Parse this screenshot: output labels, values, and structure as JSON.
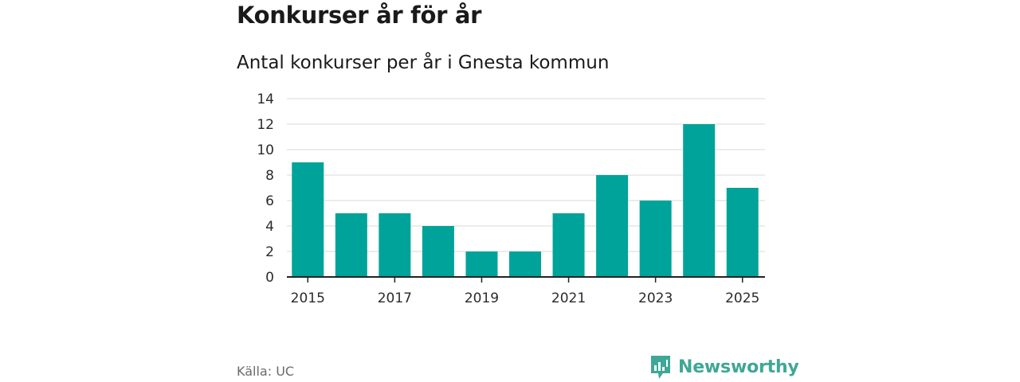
{
  "header": {
    "title": "Konkurser år för år",
    "subtitle": "Antal konkurser per år i Gnesta kommun"
  },
  "footer": {
    "source": "Källa: UC",
    "brand": "Newsworthy",
    "brand_icon": "newsworthy-logo-icon"
  },
  "colors": {
    "bar": "#00a39a",
    "grid": "#d9d9d9",
    "axis": "#222222",
    "brand": "#3fa796"
  },
  "chart_data": {
    "type": "bar",
    "title": "Konkurser år för år",
    "subtitle": "Antal konkurser per år i Gnesta kommun",
    "categories": [
      "2015",
      "2016",
      "2017",
      "2018",
      "2019",
      "2020",
      "2021",
      "2022",
      "2023",
      "2024",
      "2025"
    ],
    "values": [
      9,
      5,
      5,
      4,
      2,
      2,
      5,
      8,
      6,
      12,
      7
    ],
    "x_tick_labels": [
      "2015",
      "2017",
      "2019",
      "2021",
      "2023",
      "2025"
    ],
    "y_ticks": [
      0,
      2,
      4,
      6,
      8,
      10,
      12,
      14
    ],
    "ylim": [
      0,
      14
    ],
    "xlabel": "",
    "ylabel": "",
    "grid": true
  }
}
